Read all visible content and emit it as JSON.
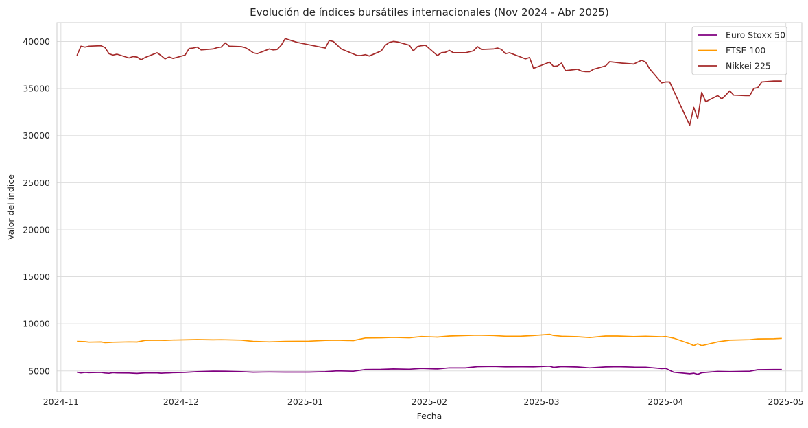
{
  "chart_data": {
    "type": "line",
    "title": "Evolución de índices bursátiles internacionales (Nov 2024 - Abr 2025)",
    "xlabel": "Fecha",
    "ylabel": "Valor del índice",
    "x_ticks": [
      "2024-11",
      "2024-12",
      "2025-01",
      "2025-02",
      "2025-03",
      "2025-04",
      "2025-05"
    ],
    "y_ticks": [
      "5000",
      "10000",
      "15000",
      "20000",
      "25000",
      "30000",
      "35000",
      "40000"
    ],
    "xlim": [
      "2024-10-31",
      "2025-05-05"
    ],
    "ylim": [
      2800,
      42000
    ],
    "grid": true,
    "legend_position": "top-right",
    "series": [
      {
        "name": "Euro Stoxx 50",
        "color": "#800080",
        "x": [
          "2024-11-05",
          "2024-11-06",
          "2024-11-07",
          "2024-11-08",
          "2024-11-11",
          "2024-11-12",
          "2024-11-13",
          "2024-11-14",
          "2024-11-15",
          "2024-11-18",
          "2024-11-19",
          "2024-11-20",
          "2024-11-21",
          "2024-11-22",
          "2024-11-25",
          "2024-11-26",
          "2024-11-27",
          "2024-11-28",
          "2024-11-29",
          "2024-12-02",
          "2024-12-05",
          "2024-12-09",
          "2024-12-12",
          "2024-12-16",
          "2024-12-19",
          "2024-12-23",
          "2024-12-27",
          "2025-01-02",
          "2025-01-06",
          "2025-01-09",
          "2025-01-13",
          "2025-01-16",
          "2025-01-20",
          "2025-01-23",
          "2025-01-27",
          "2025-01-30",
          "2025-02-03",
          "2025-02-06",
          "2025-02-10",
          "2025-02-13",
          "2025-02-17",
          "2025-02-20",
          "2025-02-24",
          "2025-02-27",
          "2025-03-03",
          "2025-03-04",
          "2025-03-06",
          "2025-03-10",
          "2025-03-13",
          "2025-03-17",
          "2025-03-20",
          "2025-03-24",
          "2025-03-27",
          "2025-03-31",
          "2025-04-01",
          "2025-04-03",
          "2025-04-07",
          "2025-04-08",
          "2025-04-09",
          "2025-04-10",
          "2025-04-14",
          "2025-04-17",
          "2025-04-22",
          "2025-04-24",
          "2025-04-28",
          "2025-04-30"
        ],
        "y": [
          4870,
          4800,
          4850,
          4820,
          4850,
          4780,
          4750,
          4820,
          4800,
          4780,
          4760,
          4740,
          4770,
          4790,
          4800,
          4760,
          4780,
          4790,
          4820,
          4850,
          4920,
          4980,
          4970,
          4930,
          4870,
          4890,
          4880,
          4880,
          4920,
          5010,
          4970,
          5150,
          5170,
          5210,
          5180,
          5270,
          5210,
          5330,
          5320,
          5460,
          5490,
          5440,
          5450,
          5440,
          5510,
          5380,
          5470,
          5420,
          5330,
          5430,
          5460,
          5410,
          5400,
          5250,
          5280,
          4860,
          4700,
          4760,
          4640,
          4810,
          4950,
          4930,
          4970,
          5130,
          5150,
          5150
        ]
      },
      {
        "name": "FTSE 100",
        "color": "#ff9900",
        "x": [
          "2024-11-05",
          "2024-11-07",
          "2024-11-08",
          "2024-11-11",
          "2024-11-12",
          "2024-11-13",
          "2024-11-14",
          "2024-11-15",
          "2024-11-18",
          "2024-11-20",
          "2024-11-22",
          "2024-11-25",
          "2024-11-27",
          "2024-11-29",
          "2024-12-02",
          "2024-12-05",
          "2024-12-09",
          "2024-12-11",
          "2024-12-16",
          "2024-12-19",
          "2024-12-23",
          "2024-12-27",
          "2025-01-02",
          "2025-01-06",
          "2025-01-09",
          "2025-01-13",
          "2025-01-16",
          "2025-01-20",
          "2025-01-23",
          "2025-01-27",
          "2025-01-30",
          "2025-02-03",
          "2025-02-06",
          "2025-02-10",
          "2025-02-13",
          "2025-02-17",
          "2025-02-20",
          "2025-02-24",
          "2025-02-27",
          "2025-03-03",
          "2025-03-04",
          "2025-03-06",
          "2025-03-10",
          "2025-03-13",
          "2025-03-17",
          "2025-03-20",
          "2025-03-24",
          "2025-03-27",
          "2025-03-31",
          "2025-04-01",
          "2025-04-03",
          "2025-04-07",
          "2025-04-08",
          "2025-04-09",
          "2025-04-10",
          "2025-04-14",
          "2025-04-17",
          "2025-04-22",
          "2025-04-24",
          "2025-04-28",
          "2025-04-30"
        ],
        "y": [
          8150,
          8120,
          8070,
          8090,
          8020,
          8030,
          8060,
          8070,
          8100,
          8080,
          8250,
          8270,
          8250,
          8290,
          8310,
          8340,
          8310,
          8320,
          8280,
          8150,
          8100,
          8150,
          8170,
          8250,
          8270,
          8230,
          8500,
          8520,
          8560,
          8520,
          8650,
          8590,
          8700,
          8750,
          8790,
          8750,
          8680,
          8690,
          8750,
          8880,
          8760,
          8680,
          8630,
          8540,
          8700,
          8700,
          8640,
          8670,
          8620,
          8650,
          8480,
          7900,
          7700,
          7900,
          7700,
          8100,
          8270,
          8320,
          8400,
          8420,
          8460
        ]
      },
      {
        "name": "Nikkei 225",
        "color": "#a52a2a",
        "x": [
          "2024-11-05",
          "2024-11-06",
          "2024-11-07",
          "2024-11-08",
          "2024-11-11",
          "2024-11-12",
          "2024-11-13",
          "2024-11-14",
          "2024-11-15",
          "2024-11-18",
          "2024-11-19",
          "2024-11-20",
          "2024-11-21",
          "2024-11-22",
          "2024-11-25",
          "2024-11-26",
          "2024-11-27",
          "2024-11-28",
          "2024-11-29",
          "2024-12-02",
          "2024-12-03",
          "2024-12-04",
          "2024-12-05",
          "2024-12-06",
          "2024-12-09",
          "2024-12-10",
          "2024-12-11",
          "2024-12-12",
          "2024-12-13",
          "2024-12-16",
          "2024-12-17",
          "2024-12-18",
          "2024-12-19",
          "2024-12-20",
          "2024-12-23",
          "2024-12-24",
          "2024-12-25",
          "2024-12-26",
          "2024-12-27",
          "2024-12-30",
          "2025-01-06",
          "2025-01-07",
          "2025-01-08",
          "2025-01-09",
          "2025-01-10",
          "2025-01-14",
          "2025-01-15",
          "2025-01-16",
          "2025-01-17",
          "2025-01-20",
          "2025-01-21",
          "2025-01-22",
          "2025-01-23",
          "2025-01-24",
          "2025-01-27",
          "2025-01-28",
          "2025-01-29",
          "2025-01-30",
          "2025-01-31",
          "2025-02-03",
          "2025-02-04",
          "2025-02-05",
          "2025-02-06",
          "2025-02-07",
          "2025-02-10",
          "2025-02-12",
          "2025-02-13",
          "2025-02-14",
          "2025-02-17",
          "2025-02-18",
          "2025-02-19",
          "2025-02-20",
          "2025-02-21",
          "2025-02-25",
          "2025-02-26",
          "2025-02-27",
          "2025-02-28",
          "2025-03-03",
          "2025-03-04",
          "2025-03-05",
          "2025-03-06",
          "2025-03-07",
          "2025-03-10",
          "2025-03-11",
          "2025-03-12",
          "2025-03-13",
          "2025-03-14",
          "2025-03-17",
          "2025-03-18",
          "2025-03-19",
          "2025-03-21",
          "2025-03-24",
          "2025-03-25",
          "2025-03-26",
          "2025-03-27",
          "2025-03-28",
          "2025-03-31",
          "2025-04-01",
          "2025-04-02",
          "2025-04-07",
          "2025-04-08",
          "2025-04-09",
          "2025-04-10",
          "2025-04-11",
          "2025-04-14",
          "2025-04-15",
          "2025-04-16",
          "2025-04-17",
          "2025-04-18",
          "2025-04-21",
          "2025-04-22",
          "2025-04-23",
          "2025-04-24",
          "2025-04-25",
          "2025-04-28",
          "2025-04-30"
        ],
        "y": [
          38500,
          39500,
          39400,
          39500,
          39550,
          39350,
          38700,
          38550,
          38650,
          38250,
          38400,
          38350,
          38050,
          38300,
          38800,
          38500,
          38150,
          38350,
          38200,
          38550,
          39250,
          39300,
          39400,
          39100,
          39200,
          39350,
          39400,
          39850,
          39500,
          39450,
          39350,
          39100,
          38800,
          38700,
          39200,
          39100,
          39150,
          39600,
          40300,
          39900,
          39300,
          40100,
          40000,
          39600,
          39200,
          38500,
          38500,
          38600,
          38450,
          39000,
          39600,
          39900,
          40000,
          39950,
          39600,
          39000,
          39450,
          39550,
          39600,
          38500,
          38800,
          38850,
          39050,
          38800,
          38800,
          39000,
          39450,
          39150,
          39200,
          39300,
          39150,
          38700,
          38800,
          38150,
          38300,
          37150,
          37300,
          37800,
          37350,
          37400,
          37700,
          36900,
          37050,
          36850,
          36800,
          36800,
          37050,
          37400,
          37850,
          37800,
          37700,
          37600,
          37800,
          38000,
          37800,
          37100,
          35600,
          35700,
          35700,
          31100,
          33000,
          31800,
          34600,
          33600,
          34250,
          33900,
          34300,
          34750,
          34300,
          34250,
          34250,
          35000,
          35100,
          35700,
          35800,
          35800
        ]
      }
    ]
  }
}
